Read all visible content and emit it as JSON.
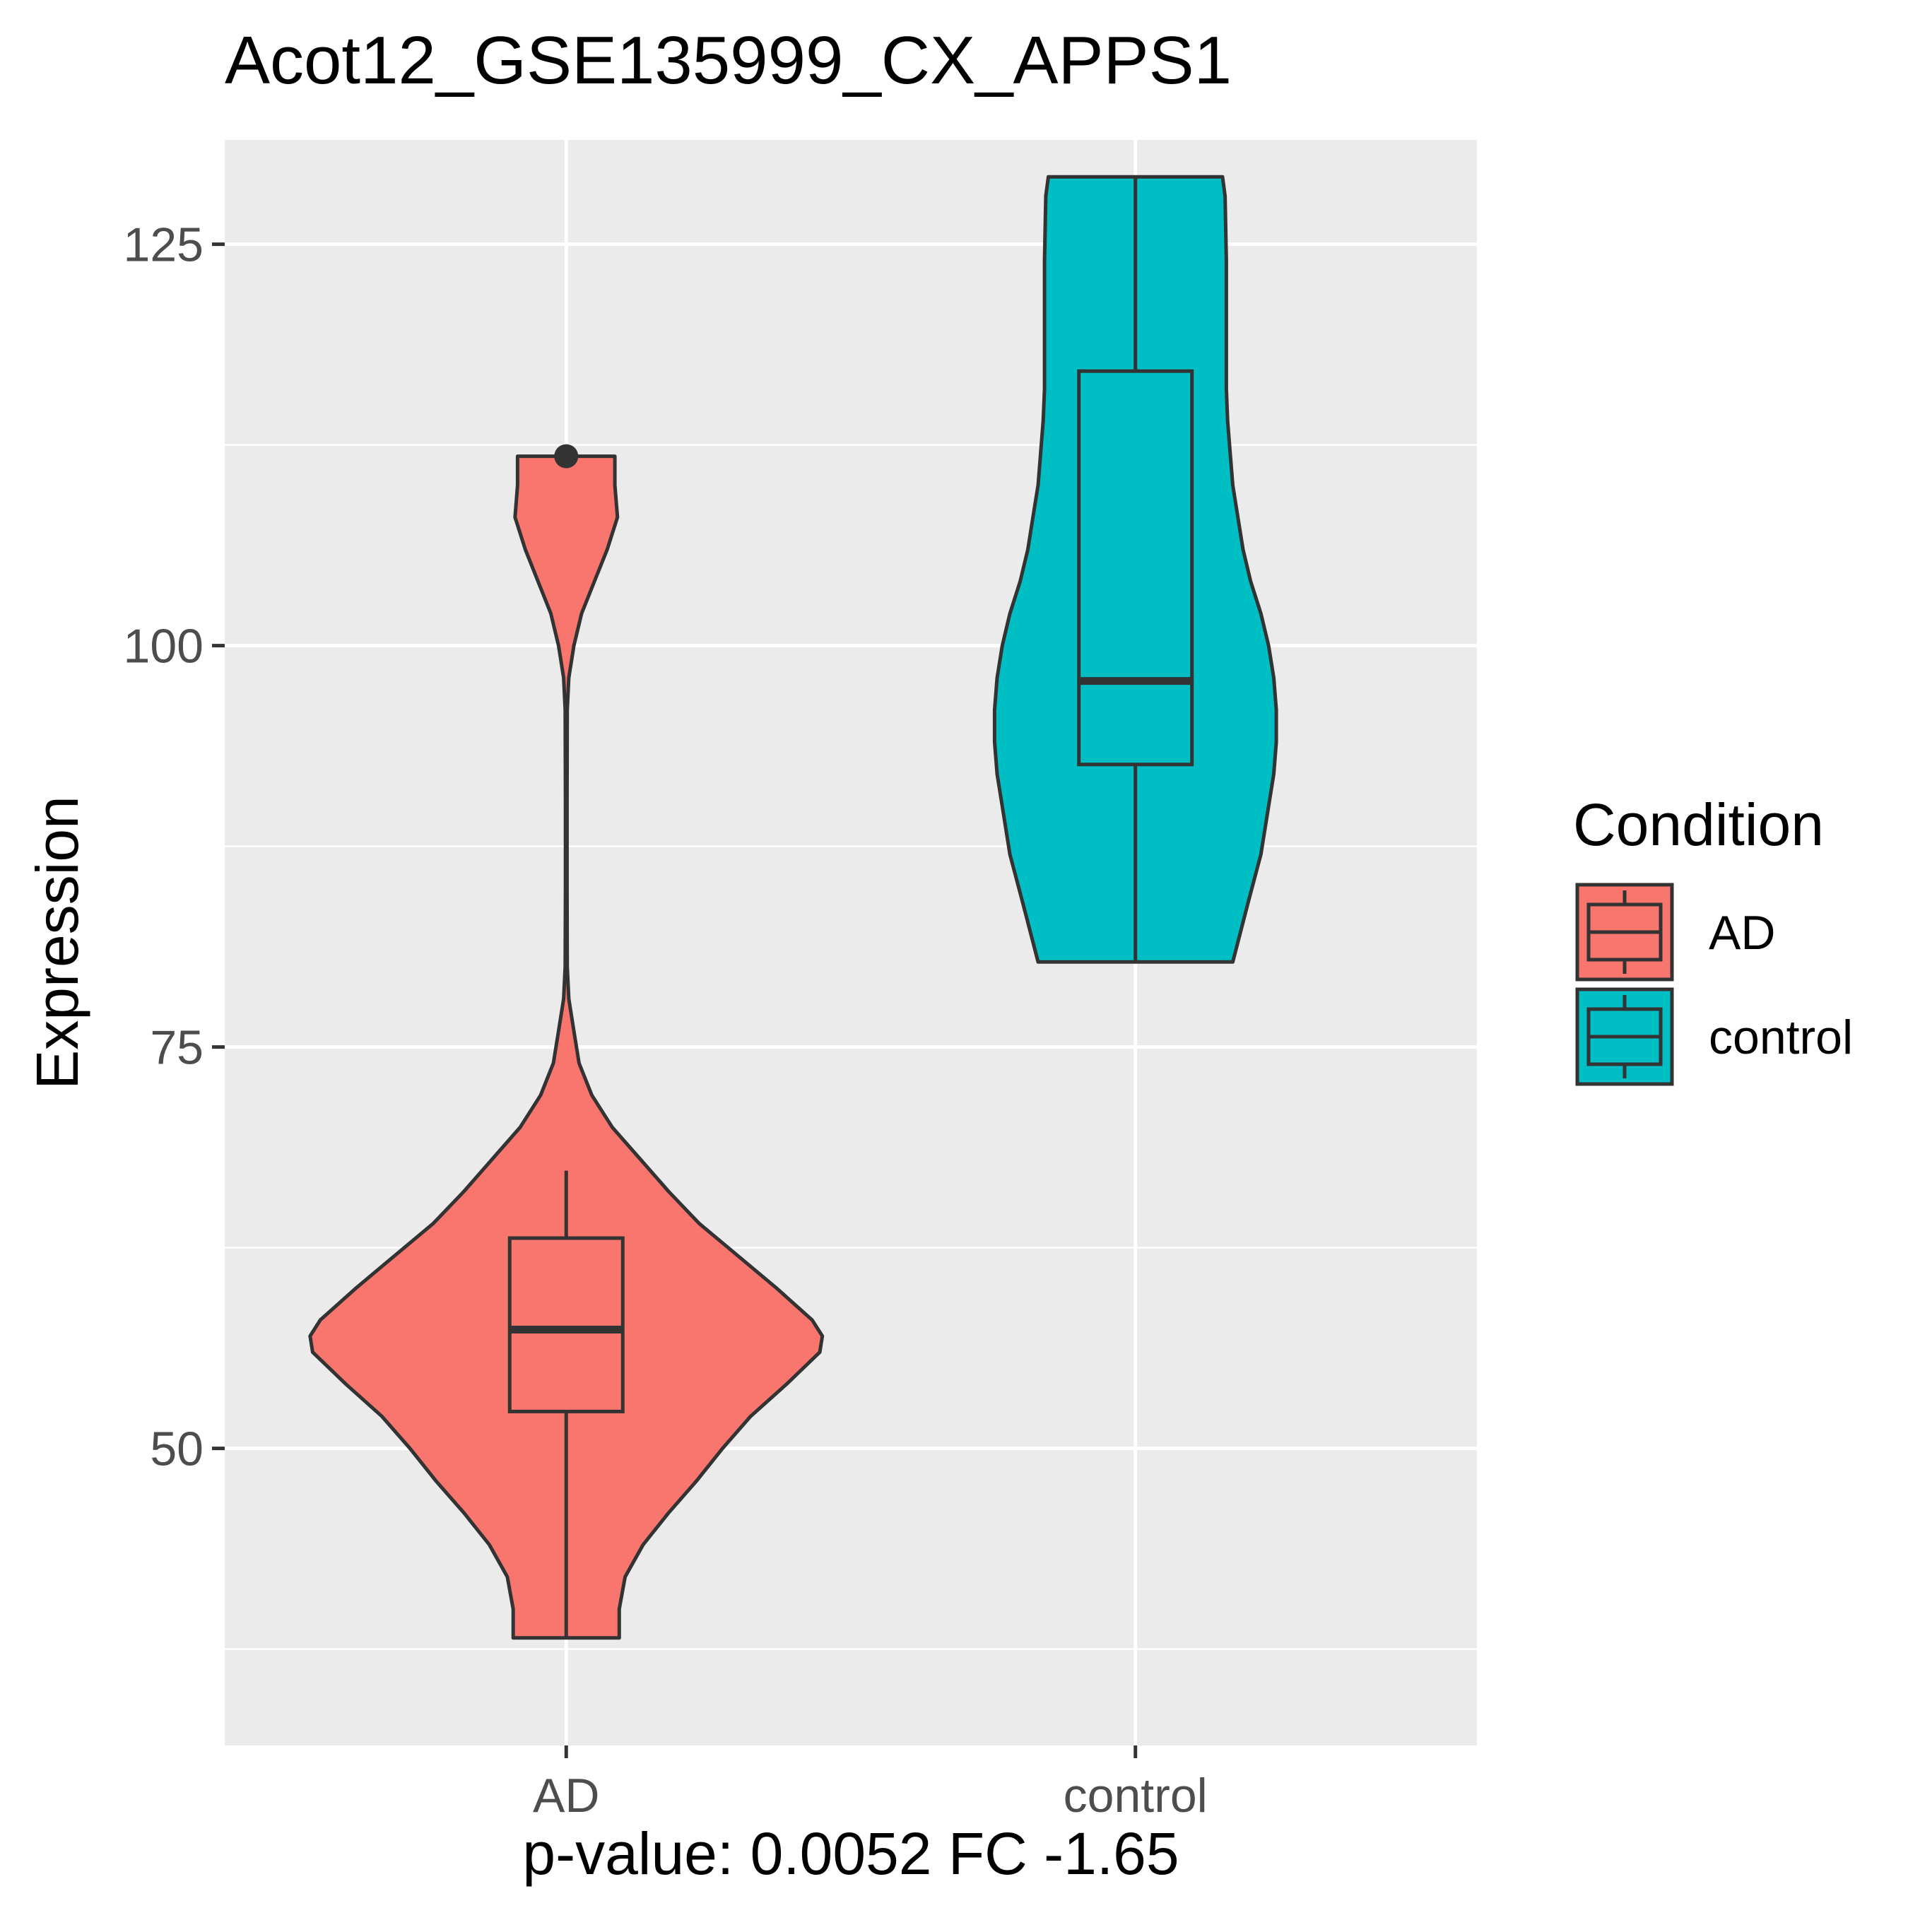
{
  "chart_data": {
    "type": "violin",
    "title": "Acot12_GSE135999_CX_APPS1",
    "xlabel": "p-value: 0.0052 FC -1.65",
    "ylabel": "Expression",
    "categories": [
      "AD",
      "control"
    ],
    "yticks": [
      50,
      75,
      100,
      125
    ],
    "ylim": [
      31.5,
      131.5
    ],
    "grid": true,
    "legend": {
      "title": "Condition",
      "position": "right",
      "entries": [
        {
          "label": "AD",
          "color": "#F8766D"
        },
        {
          "label": "control",
          "color": "#00BFC4"
        }
      ]
    },
    "series": [
      {
        "name": "AD",
        "color": "#F8766D",
        "box": {
          "min": 38.2,
          "q1": 52.3,
          "median": 57.4,
          "q3": 63.1,
          "max": 67.3
        },
        "outliers": [
          111.8
        ],
        "density": [
          [
            38.2,
            0.207
          ],
          [
            40,
            0.207
          ],
          [
            42,
            0.23
          ],
          [
            44,
            0.3
          ],
          [
            46,
            0.4
          ],
          [
            48,
            0.51
          ],
          [
            50,
            0.61
          ],
          [
            52,
            0.72
          ],
          [
            54,
            0.86
          ],
          [
            56,
            0.99
          ],
          [
            57,
            1.0
          ],
          [
            58,
            0.96
          ],
          [
            60,
            0.82
          ],
          [
            62,
            0.67
          ],
          [
            64,
            0.52
          ],
          [
            66,
            0.4
          ],
          [
            68,
            0.29
          ],
          [
            70,
            0.18
          ],
          [
            72,
            0.1
          ],
          [
            74,
            0.05
          ],
          [
            76,
            0.03
          ],
          [
            78,
            0.01
          ],
          [
            80,
            0.004
          ],
          [
            85,
            0.003
          ],
          [
            90,
            0.003
          ],
          [
            96,
            0.004
          ],
          [
            98,
            0.01
          ],
          [
            100,
            0.03
          ],
          [
            102,
            0.06
          ],
          [
            104,
            0.11
          ],
          [
            106,
            0.16
          ],
          [
            108,
            0.2
          ],
          [
            110,
            0.19
          ],
          [
            111.8,
            0.19
          ]
        ]
      },
      {
        "name": "control",
        "color": "#00BFC4",
        "box": {
          "min": 80.3,
          "q1": 92.6,
          "median": 97.8,
          "q3": 117.1,
          "max": 129.2
        },
        "outliers": [],
        "density": [
          [
            80.3,
            0.38
          ],
          [
            84,
            0.44
          ],
          [
            87,
            0.49
          ],
          [
            90,
            0.52
          ],
          [
            92,
            0.54
          ],
          [
            94,
            0.55
          ],
          [
            96,
            0.55
          ],
          [
            98,
            0.54
          ],
          [
            100,
            0.52
          ],
          [
            102,
            0.49
          ],
          [
            104,
            0.45
          ],
          [
            106,
            0.42
          ],
          [
            108,
            0.4
          ],
          [
            110,
            0.38
          ],
          [
            112,
            0.37
          ],
          [
            114,
            0.36
          ],
          [
            116,
            0.355
          ],
          [
            118,
            0.355
          ],
          [
            120,
            0.355
          ],
          [
            124,
            0.355
          ],
          [
            128,
            0.35
          ],
          [
            129.2,
            0.34
          ]
        ]
      }
    ]
  }
}
